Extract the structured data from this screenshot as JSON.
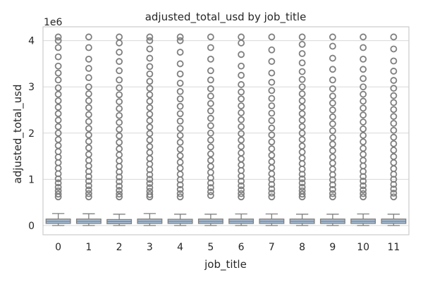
{
  "chart_data": {
    "type": "box",
    "title": "adjusted_total_usd by job_title",
    "xlabel": "job_title",
    "ylabel": "adjusted_total_usd",
    "y_offset_label": "1e6",
    "y_scale": 1000000,
    "ylim": [
      -200000,
      4300000
    ],
    "yticks": [
      0,
      1000000,
      2000000,
      3000000,
      4000000
    ],
    "ytick_labels": [
      "0",
      "1",
      "2",
      "3",
      "4"
    ],
    "categories": [
      "0",
      "1",
      "2",
      "3",
      "4",
      "5",
      "6",
      "7",
      "8",
      "9",
      "10",
      "11"
    ],
    "grid": true,
    "box_color": "#a7bfd9",
    "line_color": "#7f7f7f",
    "grid_color": "#d9d9d9",
    "boxes": [
      {
        "category": "0",
        "whisker_low": 0,
        "q1": 45000,
        "median": 90000,
        "q3": 140000,
        "whisker_high": 260000,
        "outliers": [
          620000,
          680000,
          750000,
          830000,
          920000,
          1010000,
          1120000,
          1240000,
          1360000,
          1480000,
          1600000,
          1730000,
          1860000,
          2000000,
          2140000,
          2280000,
          2420000,
          2560000,
          2700000,
          2840000,
          2980000,
          3150000,
          3300000,
          3450000,
          3650000,
          3850000,
          4000000,
          4080000
        ]
      },
      {
        "category": "1",
        "whisker_low": 0,
        "q1": 45000,
        "median": 90000,
        "q3": 140000,
        "whisker_high": 255000,
        "outliers": [
          620000,
          690000,
          770000,
          860000,
          960000,
          1060000,
          1170000,
          1290000,
          1410000,
          1540000,
          1680000,
          1820000,
          1960000,
          2100000,
          2250000,
          2400000,
          2550000,
          2700000,
          2850000,
          3000000,
          3200000,
          3400000,
          3600000,
          3850000,
          4080000
        ]
      },
      {
        "category": "2",
        "whisker_low": 0,
        "q1": 40000,
        "median": 85000,
        "q3": 130000,
        "whisker_high": 245000,
        "outliers": [
          620000,
          680000,
          760000,
          850000,
          950000,
          1050000,
          1160000,
          1280000,
          1400000,
          1530000,
          1660000,
          1800000,
          1940000,
          2080000,
          2230000,
          2380000,
          2530000,
          2680000,
          2830000,
          2980000,
          3150000,
          3350000,
          3550000,
          3750000,
          3950000,
          4080000
        ]
      },
      {
        "category": "3",
        "whisker_low": 0,
        "q1": 45000,
        "median": 90000,
        "q3": 140000,
        "whisker_high": 260000,
        "outliers": [
          620000,
          670000,
          740000,
          820000,
          910000,
          1000000,
          1100000,
          1210000,
          1330000,
          1450000,
          1580000,
          1710000,
          1850000,
          1990000,
          2130000,
          2270000,
          2410000,
          2550000,
          2690000,
          2830000,
          2970000,
          3120000,
          3280000,
          3440000,
          3620000,
          3820000,
          4000000,
          4080000
        ]
      },
      {
        "category": "4",
        "whisker_low": 0,
        "q1": 45000,
        "median": 90000,
        "q3": 135000,
        "whisker_high": 245000,
        "outliers": [
          620000,
          690000,
          780000,
          880000,
          990000,
          1110000,
          1240000,
          1370000,
          1510000,
          1650000,
          1800000,
          1950000,
          2100000,
          2260000,
          2420000,
          2580000,
          2740000,
          2900000,
          3080000,
          3280000,
          3500000,
          3750000,
          4000000,
          4080000
        ]
      },
      {
        "category": "5",
        "whisker_low": 0,
        "q1": 45000,
        "median": 90000,
        "q3": 140000,
        "whisker_high": 245000,
        "outliers": [
          650000,
          730000,
          820000,
          920000,
          1030000,
          1150000,
          1280000,
          1410000,
          1550000,
          1700000,
          1850000,
          2000000,
          2160000,
          2320000,
          2480000,
          2640000,
          2800000,
          2960000,
          3150000,
          3350000,
          3600000,
          3850000,
          4080000
        ]
      },
      {
        "category": "6",
        "whisker_low": 0,
        "q1": 45000,
        "median": 90000,
        "q3": 140000,
        "whisker_high": 250000,
        "outliers": [
          620000,
          690000,
          770000,
          860000,
          960000,
          1070000,
          1190000,
          1310000,
          1440000,
          1570000,
          1710000,
          1850000,
          1990000,
          2140000,
          2290000,
          2440000,
          2590000,
          2740000,
          2890000,
          3050000,
          3250000,
          3450000,
          3700000,
          3950000,
          4080000
        ]
      },
      {
        "category": "7",
        "whisker_low": 0,
        "q1": 45000,
        "median": 90000,
        "q3": 140000,
        "whisker_high": 250000,
        "outliers": [
          620000,
          700000,
          790000,
          890000,
          1000000,
          1120000,
          1250000,
          1380000,
          1520000,
          1660000,
          1810000,
          1960000,
          2110000,
          2270000,
          2430000,
          2590000,
          2750000,
          2920000,
          3100000,
          3300000,
          3550000,
          3800000,
          4080000
        ]
      },
      {
        "category": "8",
        "whisker_low": 0,
        "q1": 45000,
        "median": 90000,
        "q3": 140000,
        "whisker_high": 245000,
        "outliers": [
          620000,
          680000,
          750000,
          830000,
          920000,
          1010000,
          1110000,
          1220000,
          1340000,
          1460000,
          1590000,
          1720000,
          1860000,
          2000000,
          2140000,
          2280000,
          2420000,
          2560000,
          2700000,
          2850000,
          3000000,
          3160000,
          3330000,
          3520000,
          3720000,
          3920000,
          4080000
        ]
      },
      {
        "category": "9",
        "whisker_low": 0,
        "q1": 45000,
        "median": 90000,
        "q3": 140000,
        "whisker_high": 245000,
        "outliers": [
          620000,
          690000,
          780000,
          880000,
          990000,
          1100000,
          1220000,
          1350000,
          1480000,
          1620000,
          1760000,
          1900000,
          2050000,
          2200000,
          2350000,
          2500000,
          2650000,
          2800000,
          2960000,
          3150000,
          3380000,
          3620000,
          3880000,
          4080000
        ]
      },
      {
        "category": "10",
        "whisker_low": 0,
        "q1": 45000,
        "median": 90000,
        "q3": 140000,
        "whisker_high": 250000,
        "outliers": [
          620000,
          690000,
          770000,
          860000,
          960000,
          1060000,
          1170000,
          1290000,
          1410000,
          1540000,
          1670000,
          1810000,
          1950000,
          2090000,
          2240000,
          2390000,
          2540000,
          2690000,
          2840000,
          3000000,
          3180000,
          3380000,
          3600000,
          3850000,
          4080000
        ]
      },
      {
        "category": "11",
        "whisker_low": 0,
        "q1": 45000,
        "median": 90000,
        "q3": 140000,
        "whisker_high": 245000,
        "outliers": [
          620000,
          700000,
          790000,
          890000,
          1000000,
          1110000,
          1230000,
          1360000,
          1490000,
          1630000,
          1770000,
          1910000,
          2060000,
          2210000,
          2360000,
          2510000,
          2660000,
          2810000,
          2970000,
          3140000,
          3340000,
          3560000,
          3820000,
          4080000
        ]
      }
    ]
  }
}
